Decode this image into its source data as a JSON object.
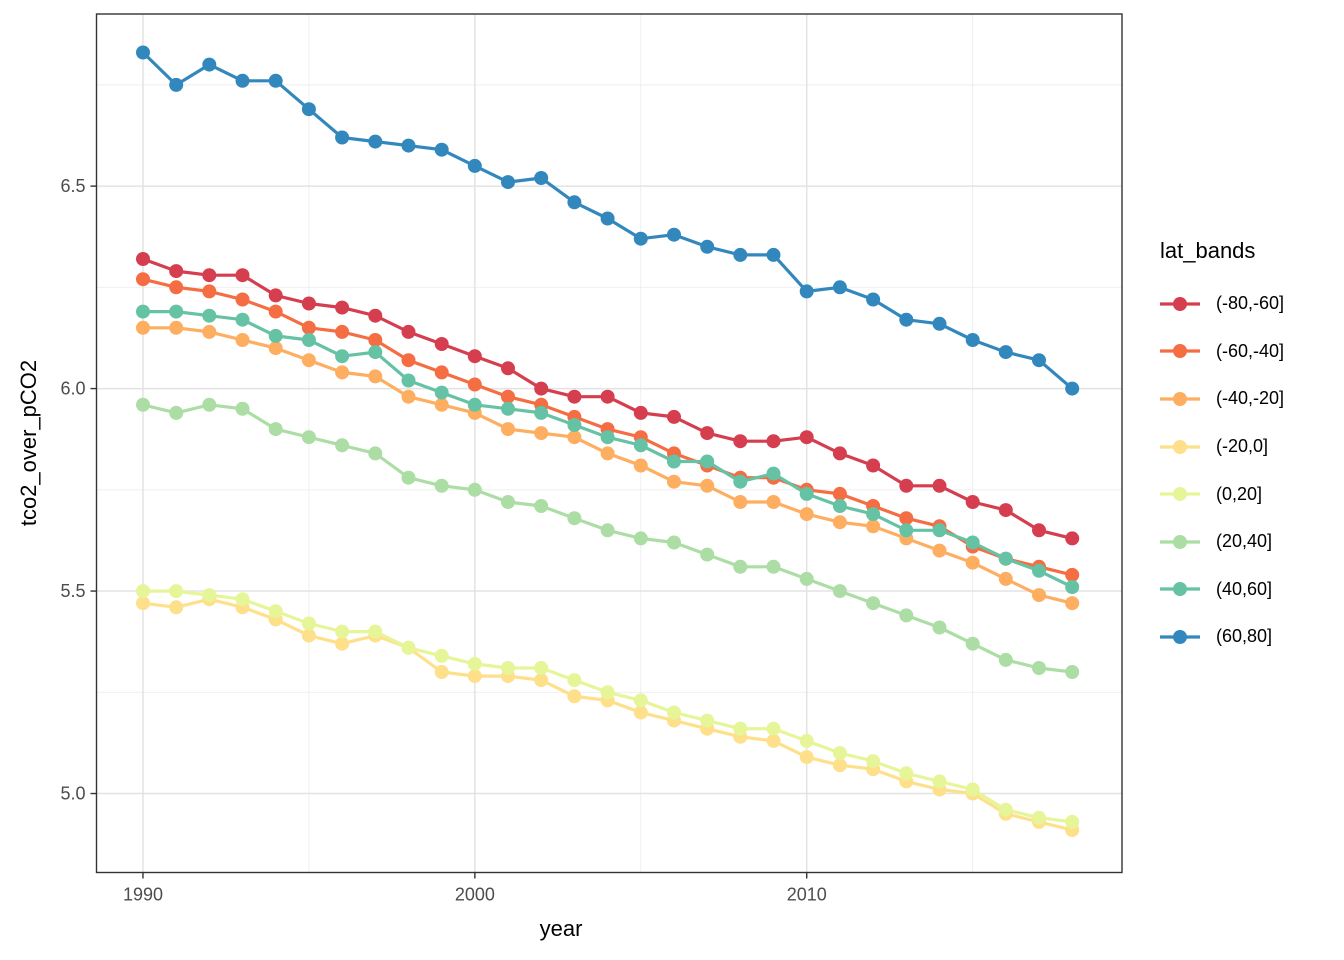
{
  "chart_data": {
    "type": "line",
    "title": "",
    "xlabel": "year",
    "ylabel": "tco2_over_pCO2",
    "x": [
      1990,
      1991,
      1992,
      1993,
      1994,
      1995,
      1996,
      1997,
      1998,
      1999,
      2000,
      2001,
      2002,
      2003,
      2004,
      2005,
      2006,
      2007,
      2008,
      2009,
      2010,
      2011,
      2012,
      2013,
      2014,
      2015,
      2016,
      2017,
      2018
    ],
    "x_ticks": {
      "values": [
        1990,
        2000,
        2010
      ],
      "labels": [
        "1990",
        "2000",
        "2010"
      ]
    },
    "x_minor": [
      1995,
      2005,
      2015
    ],
    "y_ticks": {
      "values": [
        5.0,
        5.5,
        6.0,
        6.5
      ],
      "labels": [
        "5.0",
        "5.5",
        "6.0",
        "6.5"
      ]
    },
    "y_minor": [
      5.25,
      5.75,
      6.25,
      6.75
    ],
    "xlim": [
      1988.6,
      2019.5
    ],
    "ylim": [
      4.805,
      6.925
    ],
    "grid": "major+minor",
    "legend": {
      "title": "lat_bands",
      "position": "right"
    },
    "series": [
      {
        "name": "(-80,-60]",
        "color": "#D53E4F",
        "values": [
          6.32,
          6.29,
          6.28,
          6.28,
          6.23,
          6.21,
          6.2,
          6.18,
          6.14,
          6.11,
          6.08,
          6.05,
          6.0,
          5.98,
          5.98,
          5.94,
          5.93,
          5.89,
          5.87,
          5.87,
          5.88,
          5.84,
          5.81,
          5.76,
          5.76,
          5.72,
          5.7,
          5.65,
          5.63
        ]
      },
      {
        "name": "(-60,-40]",
        "color": "#F46D43",
        "values": [
          6.27,
          6.25,
          6.24,
          6.22,
          6.19,
          6.15,
          6.14,
          6.12,
          6.07,
          6.04,
          6.01,
          5.98,
          5.96,
          5.93,
          5.9,
          5.88,
          5.84,
          5.81,
          5.78,
          5.78,
          5.75,
          5.74,
          5.71,
          5.68,
          5.66,
          5.61,
          5.58,
          5.56,
          5.54
        ]
      },
      {
        "name": "(-40,-20]",
        "color": "#FDAE61",
        "values": [
          6.15,
          6.15,
          6.14,
          6.12,
          6.1,
          6.07,
          6.04,
          6.03,
          5.98,
          5.96,
          5.94,
          5.9,
          5.89,
          5.88,
          5.84,
          5.81,
          5.77,
          5.76,
          5.72,
          5.72,
          5.69,
          5.67,
          5.66,
          5.63,
          5.6,
          5.57,
          5.53,
          5.49,
          5.47
        ]
      },
      {
        "name": "(-20,0]",
        "color": "#FEE08B",
        "values": [
          5.47,
          5.46,
          5.48,
          5.46,
          5.43,
          5.39,
          5.37,
          5.39,
          5.36,
          5.3,
          5.29,
          5.29,
          5.28,
          5.24,
          5.23,
          5.2,
          5.18,
          5.16,
          5.14,
          5.13,
          5.09,
          5.07,
          5.06,
          5.03,
          5.01,
          5.0,
          4.95,
          4.93,
          4.91
        ]
      },
      {
        "name": "(0,20]",
        "color": "#E6F598",
        "values": [
          5.5,
          5.5,
          5.49,
          5.48,
          5.45,
          5.42,
          5.4,
          5.4,
          5.36,
          5.34,
          5.32,
          5.31,
          5.31,
          5.28,
          5.25,
          5.23,
          5.2,
          5.18,
          5.16,
          5.16,
          5.13,
          5.1,
          5.08,
          5.05,
          5.03,
          5.01,
          4.96,
          4.94,
          4.93
        ]
      },
      {
        "name": "(20,40]",
        "color": "#ABDDA4",
        "values": [
          5.96,
          5.94,
          5.96,
          5.95,
          5.9,
          5.88,
          5.86,
          5.84,
          5.78,
          5.76,
          5.75,
          5.72,
          5.71,
          5.68,
          5.65,
          5.63,
          5.62,
          5.59,
          5.56,
          5.56,
          5.53,
          5.5,
          5.47,
          5.44,
          5.41,
          5.37,
          5.33,
          5.31,
          5.3
        ]
      },
      {
        "name": "(40,60]",
        "color": "#66C2A5",
        "values": [
          6.19,
          6.19,
          6.18,
          6.17,
          6.13,
          6.12,
          6.08,
          6.09,
          6.02,
          5.99,
          5.96,
          5.95,
          5.94,
          5.91,
          5.88,
          5.86,
          5.82,
          5.82,
          5.77,
          5.79,
          5.74,
          5.71,
          5.69,
          5.65,
          5.65,
          5.62,
          5.58,
          5.55,
          5.51
        ]
      },
      {
        "name": "(60,80]",
        "color": "#3288BD",
        "values": [
          6.83,
          6.75,
          6.8,
          6.76,
          6.76,
          6.69,
          6.62,
          6.61,
          6.6,
          6.59,
          6.55,
          6.51,
          6.52,
          6.46,
          6.42,
          6.37,
          6.38,
          6.35,
          6.33,
          6.33,
          6.24,
          6.25,
          6.22,
          6.17,
          6.16,
          6.12,
          6.09,
          6.07,
          6.0
        ]
      }
    ]
  },
  "style_colors": {
    "background": "#FFFFFF",
    "panel_background": "#FFFFFF",
    "panel_border": "#333333",
    "grid_major": "#E3E3E3",
    "grid_minor": "#EDEDED",
    "tick_mark": "#333333",
    "tick_label": "#4D4D4D",
    "axis_title": "#000000"
  }
}
